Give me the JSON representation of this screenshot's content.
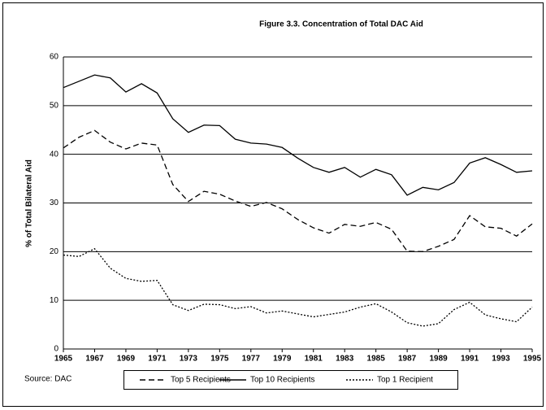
{
  "chart_data": {
    "type": "line",
    "title": "Figure 3.3.  Concentration of Total DAC Aid",
    "y_label": "% of Total Bilateral Aid",
    "source": "Source: DAC",
    "x": [
      1965,
      1966,
      1967,
      1968,
      1969,
      1970,
      1971,
      1972,
      1973,
      1974,
      1975,
      1976,
      1977,
      1978,
      1979,
      1980,
      1981,
      1982,
      1983,
      1984,
      1985,
      1986,
      1987,
      1988,
      1989,
      1990,
      1991,
      1992,
      1993,
      1994,
      1995
    ],
    "xlim": [
      1965,
      1995
    ],
    "xticks": [
      1965,
      1967,
      1969,
      1971,
      1973,
      1975,
      1977,
      1979,
      1981,
      1983,
      1985,
      1987,
      1989,
      1991,
      1993,
      1995
    ],
    "ylim": [
      0,
      60
    ],
    "yticks": [
      0,
      10,
      20,
      30,
      40,
      50,
      60
    ],
    "grid": true,
    "series": [
      {
        "name": "Top 5 Recipients",
        "color": "#000000",
        "dash": "dashed",
        "values": [
          41.3,
          43.5,
          44.9,
          42.5,
          41.1,
          42.3,
          41.9,
          33.8,
          30.3,
          32.4,
          31.8,
          30.4,
          29.3,
          30.1,
          28.8,
          26.6,
          24.9,
          23.8,
          25.6,
          25.2,
          26.0,
          24.6,
          20.1,
          20.0,
          21.1,
          22.5,
          27.4,
          25.1,
          24.8,
          23.2,
          25.7
        ]
      },
      {
        "name": "Top 10 Recipients",
        "color": "#000000",
        "dash": "solid",
        "values": [
          53.7,
          55.0,
          56.3,
          55.7,
          52.8,
          54.5,
          52.6,
          47.3,
          44.5,
          46.0,
          45.9,
          43.1,
          42.3,
          42.1,
          41.4,
          39.2,
          37.3,
          36.3,
          37.3,
          35.3,
          36.9,
          35.8,
          31.6,
          33.2,
          32.7,
          34.2,
          38.2,
          39.3,
          37.9,
          36.3,
          36.6
        ]
      },
      {
        "name": "Top 1 Recipient",
        "color": "#000000",
        "dash": "dotted",
        "values": [
          19.3,
          19.0,
          20.6,
          16.6,
          14.5,
          13.9,
          14.1,
          9.1,
          7.9,
          9.2,
          9.1,
          8.3,
          8.7,
          7.4,
          7.8,
          7.2,
          6.6,
          7.1,
          7.6,
          8.6,
          9.3,
          7.6,
          5.4,
          4.7,
          5.2,
          8.1,
          9.6,
          7.0,
          6.2,
          5.6,
          8.6
        ]
      }
    ]
  }
}
